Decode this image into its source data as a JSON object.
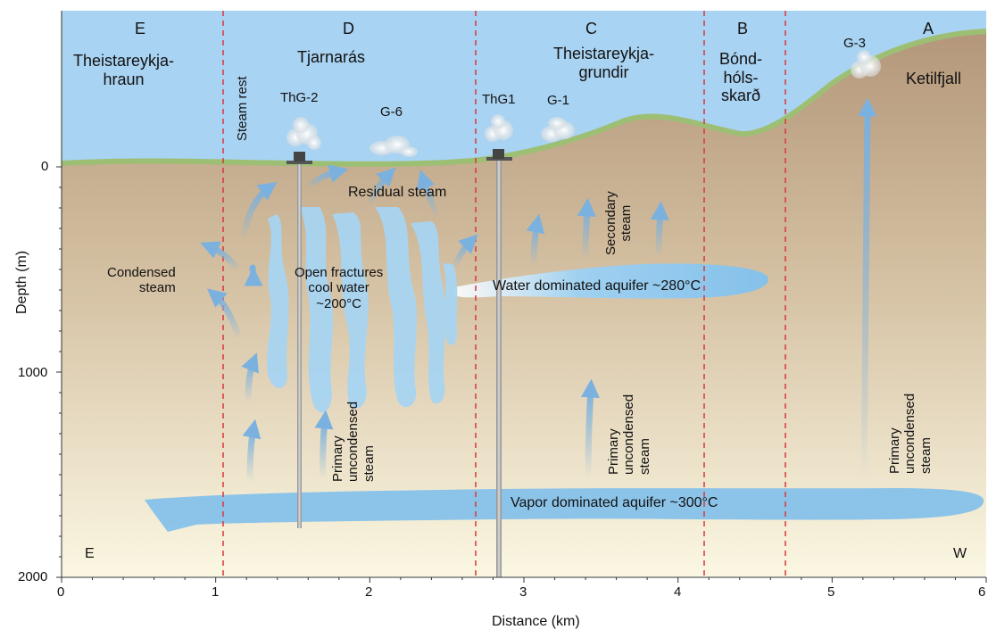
{
  "axes": {
    "xlabel": "Distance (km)",
    "ylabel": "Depth (m)",
    "x_ticks": [
      "0",
      "1",
      "2",
      "3",
      "4",
      "5",
      "6"
    ],
    "y_ticks": [
      "0",
      "1000",
      "2000"
    ]
  },
  "zones": [
    {
      "letter": "E",
      "name": "Theistareykja-\nhraun"
    },
    {
      "letter": "D",
      "name": "Tjarnarás"
    },
    {
      "letter": "C",
      "name": "Theistareykja-\ngrundir"
    },
    {
      "letter": "B",
      "name": "Bónd-\nhóls-\nskarð"
    },
    {
      "letter": "A",
      "name": "Ketilfjall"
    }
  ],
  "wells": {
    "thg2": "ThG-2",
    "thg1": "ThG1"
  },
  "fumaroles": {
    "g6": "G-6",
    "g1": "G-1",
    "g3": "G-3"
  },
  "annotations": {
    "steam_rest": "Steam rest",
    "residual_steam": "Residual steam",
    "condensed_steam": "Condensed\nsteam",
    "open_fractures": "Open fractures\ncool water\n~200°C",
    "secondary_steam": "Secondary\nsteam",
    "water_aquifer": "Water dominated aquifer ~280°C",
    "vapor_aquifer": "Vapor dominated aquifer ~300°C",
    "primary_steam": "Primary\nuncondensed\nsteam"
  },
  "corners": {
    "east": "E",
    "west": "W"
  },
  "colors": {
    "sky": "#a9d3f2",
    "ground_top": "#b99a78",
    "ground_bottom": "#fbf6df",
    "surface": "#9dbf74",
    "water": "#8cc8ec",
    "divider": "#d9363a",
    "arrow": "#7bb1df"
  }
}
